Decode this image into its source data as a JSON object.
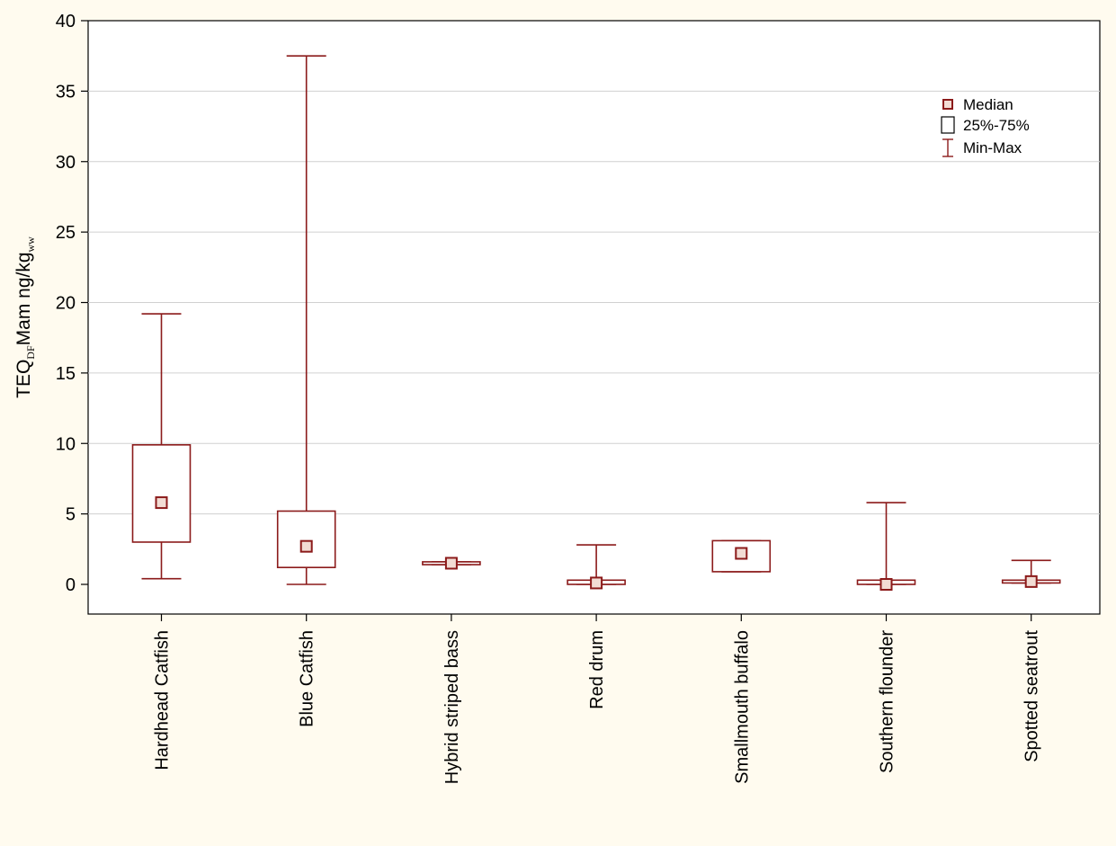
{
  "chart_data": {
    "type": "boxplot",
    "title": "",
    "ylabel": {
      "parts": [
        {
          "text": "TEQ",
          "sub": false
        },
        {
          "text": "DF",
          "sub": true
        },
        {
          "text": "Mam ng/kg",
          "sub": false
        },
        {
          "text": "ww",
          "sub": true
        }
      ]
    },
    "xlabel": "",
    "ylim": [
      -2,
      40
    ],
    "yticks": [
      0,
      5,
      10,
      15,
      20,
      25,
      30,
      35,
      40
    ],
    "grid": true,
    "legend_position": "top-right",
    "legend": [
      {
        "symbol": "median",
        "label": "Median"
      },
      {
        "symbol": "box",
        "label": "25%-75%"
      },
      {
        "symbol": "whisker",
        "label": "Min-Max"
      }
    ],
    "categories": [
      "Hardhead Catfish",
      "Blue Catfish",
      "Hybrid striped bass",
      "Red drum",
      "Smallmouth buffalo",
      "Southern flounder",
      "Spotted seatrout"
    ],
    "boxes": [
      {
        "min": 0.4,
        "q1": 3.0,
        "median": 5.8,
        "q3": 9.9,
        "max": 19.2
      },
      {
        "min": 0.0,
        "q1": 1.2,
        "median": 2.7,
        "q3": 5.2,
        "max": 37.5
      },
      {
        "min": 1.4,
        "q1": 1.4,
        "median": 1.5,
        "q3": 1.6,
        "max": 1.6
      },
      {
        "min": 0.0,
        "q1": 0.0,
        "median": 0.1,
        "q3": 0.3,
        "max": 2.8
      },
      {
        "min": 0.9,
        "q1": 0.9,
        "median": 2.2,
        "q3": 3.1,
        "max": 3.1
      },
      {
        "min": 0.0,
        "q1": 0.0,
        "median": 0.0,
        "q3": 0.3,
        "max": 5.8
      },
      {
        "min": 0.1,
        "q1": 0.1,
        "median": 0.2,
        "q3": 0.3,
        "max": 1.7
      }
    ],
    "colors": {
      "series": "#8b1a1a",
      "median_fill": "#f2dcd4",
      "grid": "#d0d0d0",
      "axis": "#000000",
      "background": "#fffbef",
      "plot_background": "#ffffff"
    }
  }
}
